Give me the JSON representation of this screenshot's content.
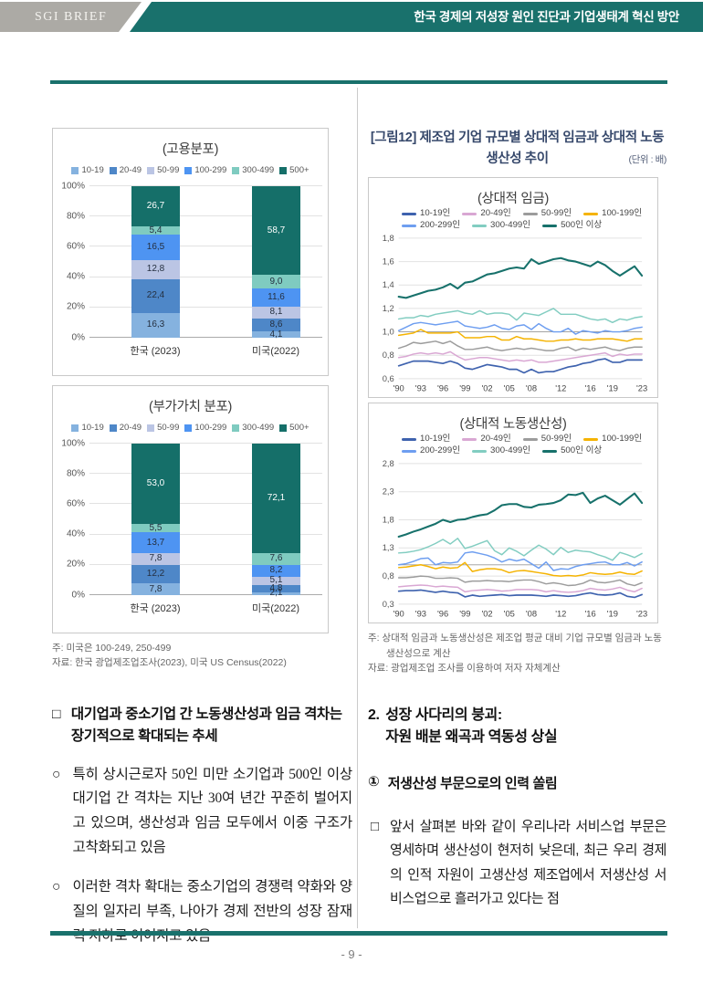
{
  "header": {
    "brand": "SGI BRIEF",
    "title": "한국 경제의 저성장 원인 진단과 기업생태계 혁신 방안"
  },
  "footer": {
    "page_number": "- 9 -"
  },
  "colors": {
    "accent_teal": "#19716C",
    "header_gray": "#ACAAA5",
    "divider_gray": "#CBCBCB",
    "figure_title_navy": "#36486B",
    "note_gray": "#666666"
  },
  "left": {
    "notes": [
      "주: 미국은 100-249, 250-499",
      "자료: 한국 광업제조업조사(2023), 미국 US Census(2022)"
    ],
    "heading": {
      "marker": "□",
      "text": "대기업과 중소기업 간 노동생산성과 임금 격차는 장기적으로 확대되는 추세"
    },
    "bullets": [
      {
        "marker": "○",
        "text": "특히 상시근로자 50인 미만 소기업과 500인 이상 대기업 간 격차는 지난 30여 년간 꾸준히 벌어지고 있으며, 생산성과 임금 모두에서 이중 구조가 고착화되고 있음"
      },
      {
        "marker": "○",
        "text": "이러한 격차 확대는 중소기업의 경쟁력 약화와 양질의 일자리 부족, 나아가 경제 전반의 성장 잠재력 저하로 이어지고 있음"
      }
    ]
  },
  "right": {
    "figure_title": "[그림12] 제조업 기업 규모별 상대적 임금과 상대적 노동생산성 추이",
    "figure_unit": "(단위 : 배)",
    "notes": [
      "주: 상대적 임금과 노동생산성은 제조업 평균 대비 기업 규모별 임금과 노동생산성으로 계산",
      "자료: 광업제조업 조사를 이용하여 저자 자체계산"
    ],
    "section_heading": {
      "marker": "2.",
      "line1": "성장 사다리의 붕괴:",
      "line2": "자원 배분 왜곡과 역동성 상실"
    },
    "sub_heading": {
      "marker": "①",
      "text": "저생산성 부문으로의 인력 쏠림"
    },
    "paragraph": {
      "marker": "□",
      "text": "앞서 살펴본 바와 같이 우리나라 서비스업 부문은 영세하며 생산성이 현저히 낮은데, 최근 우리 경제의 인적 자원이 고생산성 제조업에서 저생산성 서비스업으로 흘러가고 있다는 점"
    }
  },
  "chart_data": [
    {
      "type": "bar",
      "stacked": true,
      "title": "(고용분포)",
      "categories": [
        "한국 (2023)",
        "미국(2022)"
      ],
      "bar_lefts": [
        46,
        178
      ],
      "ylim": [
        0,
        100
      ],
      "y_ticks_pct": [
        0,
        20,
        40,
        60,
        80,
        100
      ],
      "decimal_separator": ",",
      "series": [
        {
          "name": "10-19",
          "color": "#85B2DF",
          "values": [
            16.3,
            4.1
          ]
        },
        {
          "name": "20-49",
          "color": "#4E87C8",
          "values": [
            22.4,
            8.6
          ]
        },
        {
          "name": "50-99",
          "color": "#BBC5E4",
          "values": [
            12.8,
            8.1
          ]
        },
        {
          "name": "100-299",
          "color": "#4E94F2",
          "values": [
            16.5,
            11.6
          ]
        },
        {
          "name": "300-499",
          "color": "#7FCBC0",
          "values": [
            5.4,
            9.0
          ]
        },
        {
          "name": "500+",
          "color": "#156F69",
          "values": [
            26.7,
            58.7
          ],
          "label_color": "#ffffff"
        }
      ]
    },
    {
      "type": "bar",
      "stacked": true,
      "title": "(부가가치 분포)",
      "categories": [
        "한국 (2023)",
        "미국(2022)"
      ],
      "bar_lefts": [
        46,
        178
      ],
      "ylim": [
        0,
        100
      ],
      "y_ticks_pct": [
        0,
        20,
        40,
        60,
        80,
        100
      ],
      "decimal_separator": ",",
      "series": [
        {
          "name": "10-19",
          "color": "#85B2DF",
          "values": [
            7.8,
            2.1
          ]
        },
        {
          "name": "20-49",
          "color": "#4E87C8",
          "values": [
            12.2,
            4.8
          ]
        },
        {
          "name": "50-99",
          "color": "#BBC5E4",
          "values": [
            7.8,
            5.1
          ]
        },
        {
          "name": "100-299",
          "color": "#4E94F2",
          "values": [
            13.7,
            8.2
          ]
        },
        {
          "name": "300-499",
          "color": "#7FCBC0",
          "values": [
            5.5,
            7.6
          ]
        },
        {
          "name": "500+",
          "color": "#156F69",
          "values": [
            53.0,
            72.1
          ],
          "label_color": "#ffffff"
        }
      ]
    },
    {
      "type": "line",
      "title": "(상대적 임금)",
      "x_min": 1990,
      "x_max": 2023,
      "ylim": [
        0.6,
        1.8
      ],
      "y_step": 0.2,
      "ref_line": 1.0,
      "grid": true,
      "legend_position": "top",
      "decimal_separator": ",",
      "x_ticks": [
        {
          "year": 1990,
          "label": "'90"
        },
        {
          "year": 1993,
          "label": "'93"
        },
        {
          "year": 1996,
          "label": "'96"
        },
        {
          "year": 1999,
          "label": "'99"
        },
        {
          "year": 2002,
          "label": "'02"
        },
        {
          "year": 2005,
          "label": "'05"
        },
        {
          "year": 2008,
          "label": "'08"
        },
        {
          "year": 2012,
          "label": "'12"
        },
        {
          "year": 2016,
          "label": "'16"
        },
        {
          "year": 2019,
          "label": "'19"
        },
        {
          "year": 2023,
          "label": "'23"
        }
      ],
      "series": [
        {
          "name": "10-19인",
          "color": "#3E62AE",
          "width": 1.7,
          "values": [
            0.71,
            0.73,
            0.75,
            0.75,
            0.75,
            0.74,
            0.73,
            0.75,
            0.73,
            0.69,
            0.68,
            0.7,
            0.72,
            0.71,
            0.7,
            0.68,
            0.68,
            0.65,
            0.68,
            0.65,
            0.66,
            0.66,
            0.68,
            0.7,
            0.71,
            0.73,
            0.74,
            0.76,
            0.77,
            0.74,
            0.74,
            0.76,
            0.76,
            0.76
          ]
        },
        {
          "name": "20-49인",
          "color": "#D9A7D3",
          "width": 1.5,
          "values": [
            0.78,
            0.79,
            0.81,
            0.82,
            0.81,
            0.82,
            0.81,
            0.83,
            0.79,
            0.76,
            0.77,
            0.78,
            0.78,
            0.77,
            0.76,
            0.75,
            0.76,
            0.75,
            0.76,
            0.74,
            0.74,
            0.75,
            0.76,
            0.77,
            0.78,
            0.79,
            0.8,
            0.81,
            0.82,
            0.79,
            0.81,
            0.8,
            0.81,
            0.81
          ]
        },
        {
          "name": "50-99인",
          "color": "#9C9C9C",
          "width": 1.5,
          "values": [
            0.86,
            0.88,
            0.91,
            0.9,
            0.91,
            0.92,
            0.9,
            0.92,
            0.88,
            0.85,
            0.85,
            0.86,
            0.87,
            0.85,
            0.84,
            0.85,
            0.86,
            0.85,
            0.86,
            0.85,
            0.84,
            0.84,
            0.86,
            0.87,
            0.84,
            0.86,
            0.85,
            0.86,
            0.87,
            0.85,
            0.84,
            0.86,
            0.87,
            0.87
          ]
        },
        {
          "name": "100-199인",
          "color": "#F5B301",
          "width": 1.5,
          "values": [
            0.97,
            0.98,
            0.99,
            1.02,
            0.99,
            0.99,
            0.99,
            0.99,
            1.0,
            0.95,
            0.95,
            0.95,
            0.96,
            0.96,
            0.93,
            0.93,
            0.96,
            0.94,
            0.94,
            0.93,
            0.92,
            0.92,
            0.93,
            0.93,
            0.94,
            0.93,
            0.93,
            0.94,
            0.94,
            0.94,
            0.93,
            0.92,
            0.94,
            0.94
          ]
        },
        {
          "name": "200-299인",
          "color": "#6E9EF0",
          "width": 1.5,
          "values": [
            1.01,
            1.04,
            1.07,
            1.08,
            1.07,
            1.06,
            1.07,
            1.08,
            1.09,
            1.05,
            1.04,
            1.03,
            1.04,
            1.06,
            1.03,
            1.02,
            1.05,
            1.06,
            1.02,
            1.07,
            1.03,
            1.0,
            1.0,
            1.03,
            0.98,
            1.01,
            1.0,
            0.99,
            1.01,
            1.0,
            1.0,
            1.01,
            1.03,
            1.04
          ]
        },
        {
          "name": "300-499인",
          "color": "#82CDC1",
          "width": 1.5,
          "values": [
            1.11,
            1.12,
            1.12,
            1.14,
            1.13,
            1.15,
            1.16,
            1.17,
            1.18,
            1.16,
            1.15,
            1.18,
            1.15,
            1.16,
            1.16,
            1.15,
            1.1,
            1.16,
            1.15,
            1.14,
            1.17,
            1.2,
            1.15,
            1.15,
            1.15,
            1.13,
            1.11,
            1.1,
            1.11,
            1.08,
            1.11,
            1.1,
            1.12,
            1.13
          ]
        },
        {
          "name": "500인 이상",
          "color": "#17716B",
          "width": 2.1,
          "values": [
            1.3,
            1.29,
            1.31,
            1.33,
            1.35,
            1.36,
            1.38,
            1.41,
            1.37,
            1.42,
            1.43,
            1.46,
            1.49,
            1.5,
            1.52,
            1.54,
            1.55,
            1.54,
            1.62,
            1.58,
            1.6,
            1.62,
            1.63,
            1.61,
            1.6,
            1.58,
            1.56,
            1.6,
            1.57,
            1.52,
            1.48,
            1.52,
            1.56,
            1.48
          ]
        }
      ]
    },
    {
      "type": "line",
      "title": "(상대적 노동생산성)",
      "x_min": 1990,
      "x_max": 2023,
      "ylim": [
        0.3,
        2.8
      ],
      "y_step": 0.5,
      "ref_line": 1.0,
      "grid": true,
      "legend_position": "top",
      "decimal_separator": ",",
      "x_ticks": [
        {
          "year": 1990,
          "label": "'90"
        },
        {
          "year": 1993,
          "label": "'93"
        },
        {
          "year": 1996,
          "label": "'96"
        },
        {
          "year": 1999,
          "label": "'99"
        },
        {
          "year": 2002,
          "label": "'02"
        },
        {
          "year": 2005,
          "label": "'05"
        },
        {
          "year": 2008,
          "label": "'08"
        },
        {
          "year": 2012,
          "label": "'12"
        },
        {
          "year": 2016,
          "label": "'16"
        },
        {
          "year": 2019,
          "label": "'19"
        },
        {
          "year": 2023,
          "label": "'23"
        }
      ],
      "series": [
        {
          "name": "10-19인",
          "color": "#3E62AE",
          "width": 1.7,
          "values": [
            0.53,
            0.54,
            0.54,
            0.55,
            0.53,
            0.51,
            0.53,
            0.51,
            0.5,
            0.43,
            0.46,
            0.44,
            0.45,
            0.46,
            0.47,
            0.45,
            0.46,
            0.46,
            0.46,
            0.45,
            0.44,
            0.46,
            0.45,
            0.44,
            0.45,
            0.48,
            0.5,
            0.47,
            0.46,
            0.47,
            0.5,
            0.44,
            0.42,
            0.47
          ]
        },
        {
          "name": "20-49인",
          "color": "#D9A7D3",
          "width": 1.5,
          "values": [
            0.61,
            0.62,
            0.63,
            0.64,
            0.63,
            0.61,
            0.62,
            0.61,
            0.6,
            0.52,
            0.54,
            0.55,
            0.56,
            0.55,
            0.53,
            0.54,
            0.56,
            0.56,
            0.56,
            0.55,
            0.52,
            0.54,
            0.52,
            0.51,
            0.52,
            0.54,
            0.58,
            0.56,
            0.55,
            0.57,
            0.6,
            0.55,
            0.52,
            0.58
          ]
        },
        {
          "name": "50-99인",
          "color": "#9C9C9C",
          "width": 1.5,
          "values": [
            0.77,
            0.77,
            0.78,
            0.8,
            0.79,
            0.76,
            0.76,
            0.77,
            0.76,
            0.69,
            0.71,
            0.71,
            0.72,
            0.71,
            0.71,
            0.7,
            0.72,
            0.73,
            0.73,
            0.7,
            0.66,
            0.68,
            0.66,
            0.63,
            0.64,
            0.67,
            0.73,
            0.69,
            0.68,
            0.7,
            0.73,
            0.66,
            0.63,
            0.68
          ]
        },
        {
          "name": "100-199인",
          "color": "#F5B301",
          "width": 1.5,
          "values": [
            0.95,
            0.96,
            0.98,
            1.0,
            0.97,
            0.93,
            0.96,
            0.94,
            0.95,
            1.04,
            0.88,
            0.91,
            0.93,
            0.93,
            0.91,
            0.86,
            0.89,
            0.9,
            0.88,
            0.86,
            0.84,
            0.81,
            0.8,
            0.81,
            0.8,
            0.82,
            0.86,
            0.84,
            0.83,
            0.84,
            0.87,
            0.84,
            0.83,
            0.89
          ]
        },
        {
          "name": "200-299인",
          "color": "#6E9EF0",
          "width": 1.5,
          "values": [
            1.0,
            1.02,
            1.06,
            1.11,
            1.12,
            1.0,
            1.04,
            1.03,
            1.05,
            1.21,
            1.23,
            1.2,
            1.17,
            1.12,
            1.05,
            1.1,
            1.07,
            1.1,
            1.02,
            0.94,
            1.05,
            0.9,
            0.93,
            0.92,
            0.97,
            1.0,
            1.02,
            1.04,
            1.05,
            1.0,
            1.0,
            1.04,
            0.98,
            1.05
          ]
        },
        {
          "name": "300-499인",
          "color": "#82CDC1",
          "width": 1.5,
          "values": [
            1.21,
            1.22,
            1.24,
            1.27,
            1.32,
            1.38,
            1.45,
            1.37,
            1.47,
            1.29,
            1.33,
            1.38,
            1.43,
            1.25,
            1.18,
            1.3,
            1.24,
            1.16,
            1.26,
            1.35,
            1.28,
            1.18,
            1.31,
            1.22,
            1.26,
            1.24,
            1.23,
            1.18,
            1.14,
            1.08,
            1.22,
            1.18,
            1.13,
            1.2
          ]
        },
        {
          "name": "500인 이상",
          "color": "#17716B",
          "width": 2.1,
          "values": [
            1.5,
            1.54,
            1.59,
            1.63,
            1.68,
            1.73,
            1.8,
            1.76,
            1.8,
            1.81,
            1.85,
            1.88,
            1.9,
            1.97,
            2.06,
            2.08,
            2.08,
            2.03,
            2.02,
            2.07,
            2.08,
            2.1,
            2.15,
            2.25,
            2.24,
            2.28,
            2.1,
            2.18,
            2.23,
            2.15,
            2.07,
            2.17,
            2.27,
            2.1
          ]
        }
      ]
    }
  ]
}
